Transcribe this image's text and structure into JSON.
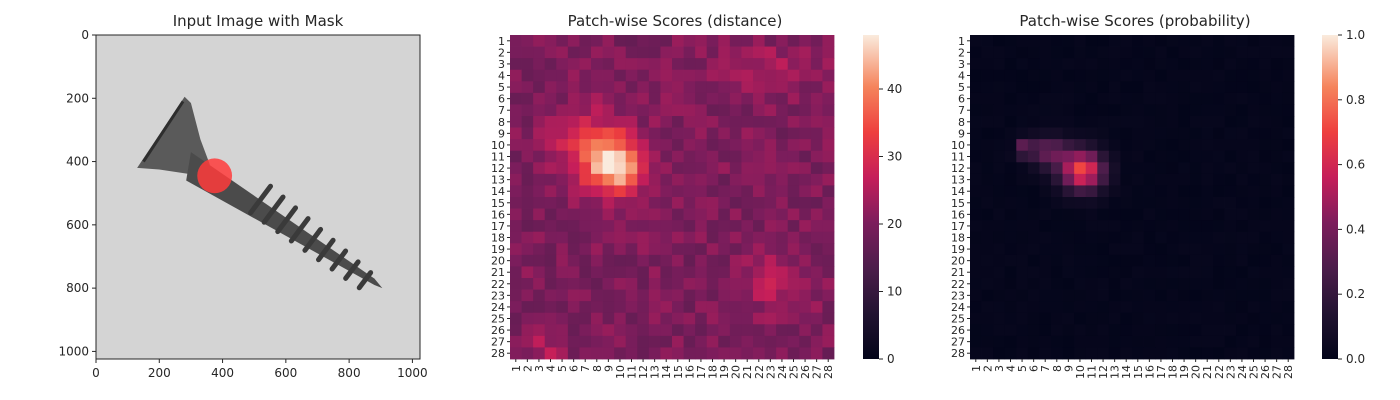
{
  "chart_data": [
    {
      "type": "image",
      "title": "Input Image with Mask",
      "xticks": [
        0,
        200,
        400,
        600,
        800,
        1000
      ],
      "yticks": [
        0,
        200,
        400,
        600,
        800,
        1000
      ],
      "xlim": [
        0,
        1024
      ],
      "ylim": [
        1024,
        0
      ],
      "image": {
        "subject": "screw",
        "background": "#d4d4d4"
      },
      "mask": {
        "cx": 375,
        "cy": 445,
        "r": 55,
        "color": "#ff3b3b"
      }
    },
    {
      "type": "heatmap",
      "title": "Patch-wise Scores (distance)",
      "rows": [
        "1",
        "2",
        "3",
        "4",
        "5",
        "6",
        "7",
        "8",
        "9",
        "10",
        "11",
        "12",
        "13",
        "14",
        "15",
        "16",
        "17",
        "18",
        "19",
        "20",
        "21",
        "22",
        "23",
        "24",
        "25",
        "26",
        "27",
        "28"
      ],
      "cols": [
        "1",
        "2",
        "3",
        "4",
        "5",
        "6",
        "7",
        "8",
        "9",
        "10",
        "11",
        "12",
        "13",
        "14",
        "15",
        "16",
        "17",
        "18",
        "19",
        "20",
        "21",
        "22",
        "23",
        "24",
        "25",
        "26",
        "27",
        "28"
      ],
      "colorbar": {
        "min": 0,
        "max": 48,
        "ticks": [
          0,
          10,
          20,
          30,
          40
        ]
      },
      "base": 20,
      "hotspots": [
        {
          "r": 11.8,
          "c": 9.5,
          "sx": 1.8,
          "sy": 1.7,
          "a": 27
        },
        {
          "r": 9.5,
          "c": 7.2,
          "sx": 2.2,
          "sy": 2.0,
          "a": 9
        },
        {
          "r": 3.5,
          "c": 22.5,
          "sx": 3.0,
          "sy": 1.4,
          "a": 5
        },
        {
          "r": 22,
          "c": 23.5,
          "sx": 2.2,
          "sy": 1.6,
          "a": 6
        },
        {
          "r": 27.5,
          "c": 3.5,
          "sx": 1.3,
          "sy": 1.0,
          "a": 5
        }
      ]
    },
    {
      "type": "heatmap",
      "title": "Patch-wise Scores (probability)",
      "rows": [
        "1",
        "2",
        "3",
        "4",
        "5",
        "6",
        "7",
        "8",
        "9",
        "10",
        "11",
        "12",
        "13",
        "14",
        "15",
        "16",
        "17",
        "18",
        "19",
        "20",
        "21",
        "22",
        "23",
        "24",
        "25",
        "26",
        "27",
        "28"
      ],
      "cols": [
        "1",
        "2",
        "3",
        "4",
        "5",
        "6",
        "7",
        "8",
        "9",
        "10",
        "11",
        "12",
        "13",
        "14",
        "15",
        "16",
        "17",
        "18",
        "19",
        "20",
        "21",
        "22",
        "23",
        "24",
        "25",
        "26",
        "27",
        "28"
      ],
      "colorbar": {
        "min": 0.0,
        "max": 1.0,
        "ticks": [
          "0.0",
          "0.2",
          "0.4",
          "0.6",
          "0.8",
          "1.0"
        ]
      },
      "base": 0,
      "hotspots": [
        {
          "r": 12.2,
          "c": 10.2,
          "sx": 1.3,
          "sy": 1.2,
          "a": 0.72
        },
        {
          "r": 10.6,
          "c": 7.3,
          "sx": 1.2,
          "sy": 0.9,
          "a": 0.35
        },
        {
          "r": 10.3,
          "c": 5.2,
          "sx": 0.5,
          "sy": 0.5,
          "a": 0.35
        }
      ]
    }
  ]
}
